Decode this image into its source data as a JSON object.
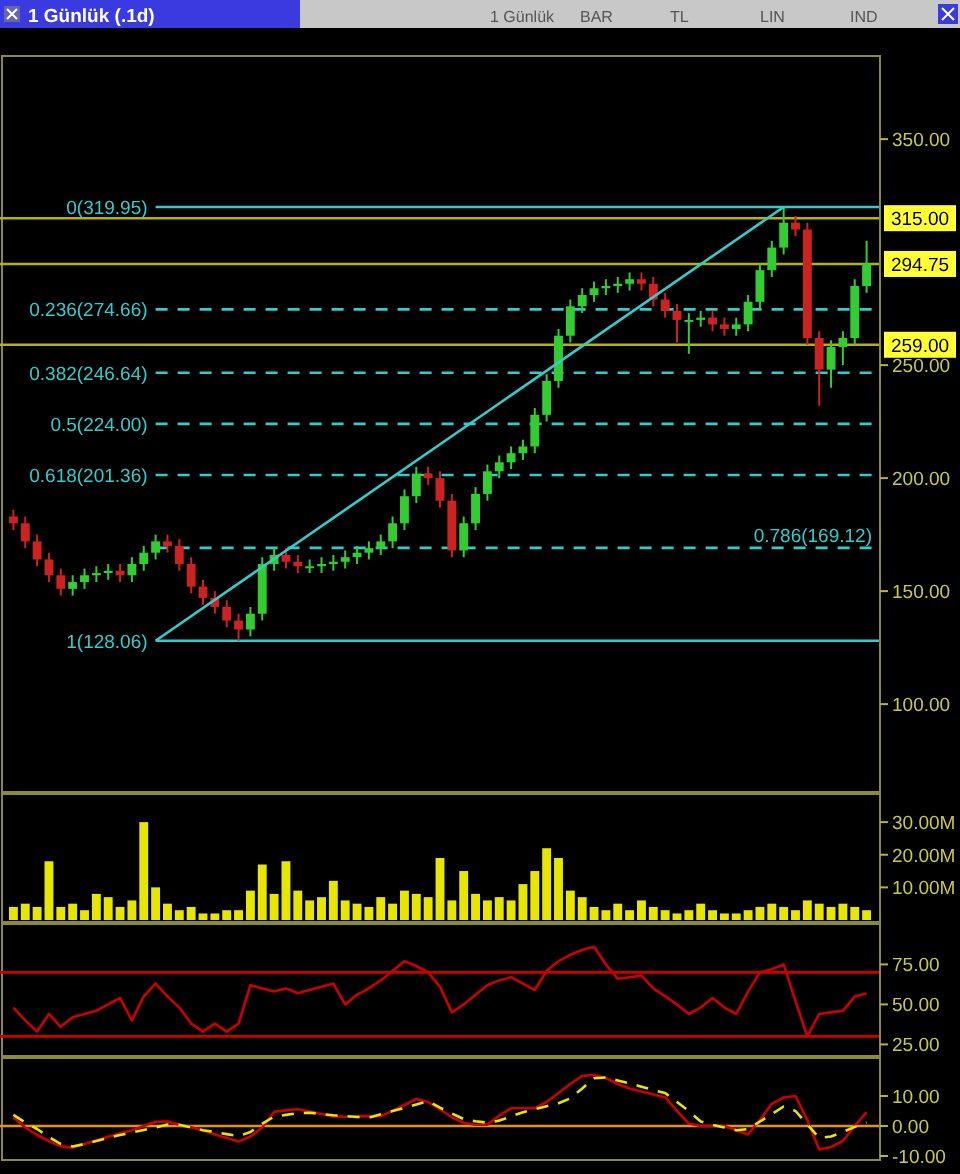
{
  "chart_data": [
    {
      "type": "candlestick",
      "title": "1 Günlük (.1d)",
      "annotations": [
        "1 Günlük",
        "BAR",
        "TL",
        "LIN",
        "IND"
      ],
      "tick_labels": "y",
      "grid": false,
      "categories": [
        null,
        null,
        null,
        null,
        null,
        null,
        null,
        null,
        null,
        null,
        null,
        null,
        null,
        null,
        null,
        null,
        null,
        null,
        null,
        null,
        null,
        null,
        null,
        null,
        null,
        null,
        null,
        null,
        null,
        null,
        null,
        null,
        null,
        null,
        null,
        null,
        null,
        null,
        null,
        null,
        null,
        null,
        null,
        null,
        null,
        null,
        null,
        null,
        null,
        null,
        null,
        null,
        null,
        null,
        null,
        null,
        null,
        null,
        null,
        null,
        null,
        null,
        null,
        null,
        null,
        null,
        null,
        null,
        null,
        null,
        null,
        null,
        null
      ],
      "ohlc": [
        [
          183,
          186,
          177,
          180
        ],
        [
          180,
          183,
          169,
          172
        ],
        [
          172,
          175,
          161,
          164
        ],
        [
          164,
          167,
          154,
          157
        ],
        [
          157,
          160,
          148,
          151
        ],
        [
          151,
          157,
          148,
          154
        ],
        [
          154,
          160,
          151,
          157
        ],
        [
          157,
          161,
          154,
          158
        ],
        [
          158,
          162,
          155,
          159
        ],
        [
          159,
          162,
          154,
          157
        ],
        [
          157,
          165,
          154,
          162
        ],
        [
          162,
          170,
          159,
          167
        ],
        [
          167,
          175,
          164,
          172
        ],
        [
          172,
          175,
          167,
          170
        ],
        [
          170,
          173,
          159,
          162
        ],
        [
          162,
          165,
          149,
          152
        ],
        [
          152,
          155,
          144,
          147
        ],
        [
          147,
          150,
          140,
          143
        ],
        [
          143,
          146,
          134,
          137
        ],
        [
          137,
          140,
          128.06,
          133
        ],
        [
          133,
          143,
          130,
          140
        ],
        [
          140,
          165,
          137,
          162
        ],
        [
          162,
          169,
          159,
          166
        ],
        [
          166,
          169,
          160,
          163
        ],
        [
          163,
          166,
          158,
          161
        ],
        [
          161,
          164,
          158,
          161
        ],
        [
          161,
          165,
          158,
          162
        ],
        [
          162,
          166,
          159,
          163
        ],
        [
          163,
          168,
          160,
          165
        ],
        [
          165,
          170,
          162,
          167
        ],
        [
          167,
          172,
          164,
          169
        ],
        [
          169,
          175,
          166,
          172
        ],
        [
          172,
          183,
          169,
          180
        ],
        [
          180,
          195,
          177,
          192
        ],
        [
          192,
          205,
          189,
          202
        ],
        [
          202,
          205,
          197,
          200
        ],
        [
          200,
          203,
          187,
          190
        ],
        [
          190,
          193,
          165,
          168
        ],
        [
          168,
          183,
          165,
          180
        ],
        [
          180,
          196,
          177,
          193
        ],
        [
          193,
          206,
          190,
          203
        ],
        [
          203,
          210,
          200,
          207
        ],
        [
          207,
          214,
          204,
          211
        ],
        [
          211,
          217,
          208,
          214
        ],
        [
          214,
          231,
          211,
          228
        ],
        [
          228,
          246,
          225,
          243
        ],
        [
          243,
          266,
          240,
          263
        ],
        [
          263,
          279,
          260,
          276
        ],
        [
          276,
          284,
          273,
          281
        ],
        [
          281,
          287,
          278,
          284
        ],
        [
          284,
          288,
          281,
          285
        ],
        [
          285,
          289,
          282,
          286
        ],
        [
          286,
          291,
          283,
          288
        ],
        [
          288,
          291,
          283,
          286
        ],
        [
          286,
          289,
          276,
          279
        ],
        [
          279,
          282,
          271,
          274
        ],
        [
          274,
          277,
          260,
          270
        ],
        [
          270,
          273,
          255,
          270
        ],
        [
          270,
          274,
          267,
          271
        ],
        [
          271,
          274,
          265,
          268
        ],
        [
          268,
          271,
          263,
          266
        ],
        [
          266,
          271,
          263,
          268
        ],
        [
          268,
          281,
          265,
          278
        ],
        [
          278,
          295,
          275,
          292
        ],
        [
          292,
          305,
          289,
          302
        ],
        [
          302,
          319.95,
          299,
          313
        ],
        [
          313,
          316,
          307,
          310
        ],
        [
          310,
          313,
          259,
          262
        ],
        [
          262,
          265,
          232,
          248
        ],
        [
          248,
          261,
          240,
          258
        ],
        [
          258,
          265,
          250,
          262
        ],
        [
          262,
          288,
          259,
          285
        ],
        [
          285,
          305,
          282,
          295
        ]
      ],
      "series": [
        {
          "type": "line",
          "color": "#33cccc",
          "values": [
            null,
            null,
            null,
            null,
            null,
            null,
            null,
            null,
            null,
            null,
            null,
            null,
            128.06,
            null,
            null,
            null,
            null,
            null,
            null,
            null,
            null,
            null,
            null,
            null,
            null,
            null,
            null,
            null,
            null,
            null,
            null,
            null,
            null,
            null,
            null,
            null,
            null,
            null,
            null,
            null,
            null,
            null,
            null,
            null,
            null,
            null,
            null,
            null,
            null,
            null,
            null,
            null,
            null,
            null,
            null,
            null,
            null,
            null,
            null,
            null,
            null,
            null,
            null,
            null,
            null,
            319.95,
            null,
            null,
            null,
            null,
            null,
            null,
            null
          ]
        }
      ],
      "ylim": [
        62,
        385
      ],
      "yticks": [
        {
          "value": 100,
          "label": "100.00"
        },
        {
          "value": 150,
          "label": "150.00"
        },
        {
          "value": 200,
          "label": "200.00"
        },
        {
          "value": 250,
          "label": "250.00"
        },
        {
          "value": 350,
          "label": "350.00"
        }
      ],
      "ref_lines": [
        {
          "axis": "y",
          "value": 319.95,
          "label": "0(319.95)",
          "color": "#33cccc",
          "line_style": "solid"
        },
        {
          "axis": "y",
          "value": 274.66,
          "label": "0.236(274.66)",
          "color": "#33cccc",
          "line_style": "dashed"
        },
        {
          "axis": "y",
          "value": 246.64,
          "label": "0.382(246.64)",
          "color": "#33cccc",
          "line_style": "dashed"
        },
        {
          "axis": "y",
          "value": 224,
          "label": "0.5(224.00)",
          "color": "#33cccc",
          "line_style": "dashed"
        },
        {
          "axis": "y",
          "value": 201.36,
          "label": "0.618(201.36)",
          "color": "#33cccc",
          "line_style": "dashed"
        },
        {
          "axis": "y",
          "value": 169.12,
          "label": "0.786(169.12)",
          "color": "#33cccc",
          "line_style": "dashed"
        },
        {
          "axis": "y",
          "value": 128.06,
          "label": "1(128.06)",
          "color": "#33cccc",
          "line_style": "solid"
        },
        {
          "axis": "y",
          "value": 315,
          "label": "315.00",
          "color": "#b5b500",
          "line_style": "solid"
        },
        {
          "axis": "y",
          "value": 294.75,
          "label": "294.75",
          "color": "#b5b500",
          "line_style": "solid"
        },
        {
          "axis": "y",
          "value": 259,
          "label": "259.00",
          "color": "#b5b500",
          "line_style": "solid"
        }
      ]
    },
    {
      "type": "bar",
      "tick_labels": "y",
      "grid": false,
      "color": "#e6e600",
      "categories": [
        null,
        null,
        null,
        null,
        null,
        null,
        null,
        null,
        null,
        null,
        null,
        null,
        null,
        null,
        null,
        null,
        null,
        null,
        null,
        null,
        null,
        null,
        null,
        null,
        null,
        null,
        null,
        null,
        null,
        null,
        null,
        null,
        null,
        null,
        null,
        null,
        null,
        null,
        null,
        null,
        null,
        null,
        null,
        null,
        null,
        null,
        null,
        null,
        null,
        null,
        null,
        null,
        null,
        null,
        null,
        null,
        null,
        null,
        null,
        null,
        null,
        null,
        null,
        null,
        null,
        null,
        null,
        null,
        null,
        null,
        null,
        null,
        null
      ],
      "values": [
        4,
        5,
        4,
        18,
        4,
        5,
        3,
        8,
        7,
        4,
        6,
        30,
        10,
        5,
        3,
        4,
        2,
        2,
        3,
        3,
        9,
        17,
        8,
        18,
        9,
        6,
        7,
        12,
        6,
        5,
        4,
        7,
        5,
        9,
        8,
        7,
        19,
        6,
        15,
        8,
        6,
        7,
        6,
        11,
        15,
        22,
        19,
        9,
        7,
        4,
        3,
        5,
        3,
        6,
        4,
        3,
        2,
        3,
        5,
        3,
        2,
        2,
        3,
        4,
        5,
        4,
        3,
        6,
        5,
        4,
        5,
        4,
        3
      ],
      "ylim": [
        0,
        38
      ],
      "yticks": [
        {
          "value": 10,
          "label": "10.00M"
        },
        {
          "value": 20,
          "label": "20.00M"
        },
        {
          "value": 30,
          "label": "30.00M"
        }
      ]
    },
    {
      "type": "line",
      "tick_labels": "y",
      "grid": false,
      "color": "#cc0000",
      "categories": [
        null,
        null,
        null,
        null,
        null,
        null,
        null,
        null,
        null,
        null,
        null,
        null,
        null,
        null,
        null,
        null,
        null,
        null,
        null,
        null,
        null,
        null,
        null,
        null,
        null,
        null,
        null,
        null,
        null,
        null,
        null,
        null,
        null,
        null,
        null,
        null,
        null,
        null,
        null,
        null,
        null,
        null,
        null,
        null,
        null,
        null,
        null,
        null,
        null,
        null,
        null,
        null,
        null,
        null,
        null,
        null,
        null,
        null,
        null,
        null,
        null,
        null,
        null,
        null,
        null,
        null,
        null,
        null,
        null,
        null,
        null,
        null,
        null
      ],
      "values": [
        48,
        40,
        33,
        44,
        36,
        42,
        44,
        46,
        50,
        54,
        40,
        55,
        63,
        55,
        48,
        38,
        33,
        38,
        33,
        38,
        62,
        60,
        58,
        60,
        57,
        59,
        61,
        63,
        50,
        56,
        60,
        65,
        71,
        77,
        74,
        70,
        61,
        45,
        50,
        56,
        62,
        65,
        67,
        63,
        59,
        71,
        77,
        81,
        84,
        86,
        75,
        66,
        67,
        68,
        60,
        55,
        50,
        44,
        48,
        54,
        48,
        44,
        58,
        70,
        72,
        75,
        52,
        30,
        44,
        45,
        46,
        55,
        57
      ],
      "ylim": [
        19,
        99
      ],
      "yticks": [
        {
          "value": 25,
          "label": "25.00"
        },
        {
          "value": 50,
          "label": "50.00"
        },
        {
          "value": 75,
          "label": "75.00"
        }
      ],
      "ref_lines": [
        {
          "axis": "y",
          "value": 70,
          "color": "#cc0000"
        },
        {
          "axis": "y",
          "value": 30,
          "color": "#cc0000"
        }
      ]
    },
    {
      "type": "line",
      "tick_labels": "y",
      "grid": false,
      "categories": [
        null,
        null,
        null,
        null,
        null,
        null,
        null,
        null,
        null,
        null,
        null,
        null,
        null,
        null,
        null,
        null,
        null,
        null,
        null,
        null,
        null,
        null,
        null,
        null,
        null,
        null,
        null,
        null,
        null,
        null,
        null,
        null,
        null,
        null,
        null,
        null,
        null,
        null,
        null,
        null,
        null,
        null,
        null,
        null,
        null,
        null,
        null,
        null,
        null,
        null,
        null,
        null,
        null,
        null,
        null,
        null,
        null,
        null,
        null,
        null,
        null,
        null,
        null,
        null,
        null,
        null,
        null,
        null,
        null,
        null,
        null,
        null,
        null
      ],
      "series": [
        {
          "color": "#cc0000",
          "line_style": "solid",
          "values": [
            2.8,
            -0.5,
            -3,
            -5,
            -6.8,
            -7.2,
            -6,
            -4.8,
            -3.6,
            -2.4,
            -1.4,
            0,
            1.4,
            1.5,
            0.4,
            -0.4,
            -1.5,
            -2.8,
            -4,
            -5.2,
            -3.5,
            -0.5,
            4.7,
            5.2,
            5.6,
            4.8,
            4,
            3.2,
            3.1,
            3.2,
            3.3,
            3.3,
            5,
            7,
            9,
            8,
            5.5,
            3,
            1,
            0.4,
            0.4,
            3.5,
            5.9,
            5.9,
            5.9,
            8,
            11,
            14,
            16.7,
            17,
            16,
            14,
            12.5,
            11.5,
            10.5,
            9.6,
            5,
            0.8,
            0,
            0,
            0,
            -1.4,
            -2.8,
            2,
            7.4,
            9.5,
            10,
            2,
            -7.8,
            -7,
            -5,
            0,
            4.6
          ]
        },
        {
          "color": "#e6e600",
          "line_style": "dashed",
          "values": [
            3.7,
            1.2,
            -1,
            -3.7,
            -6,
            -6.8,
            -6,
            -5,
            -4,
            -3,
            -2.2,
            -1.3,
            -0.5,
            0.5,
            0.4,
            -0.5,
            -1.4,
            -2,
            -2.7,
            -3.4,
            -2,
            0.8,
            3.1,
            3.7,
            4.3,
            4.4,
            4,
            3.6,
            3.3,
            3,
            2.8,
            3.9,
            5,
            6,
            7.2,
            8.3,
            6.1,
            4.2,
            2.3,
            1.6,
            1.1,
            1.8,
            3.2,
            4.6,
            5.6,
            6.6,
            7.6,
            9.2,
            12.5,
            15.9,
            16.2,
            15.2,
            14.2,
            13.1,
            12,
            11,
            8,
            5,
            1.5,
            0.4,
            -0.5,
            -1.4,
            -1,
            1.5,
            4,
            6.5,
            5,
            0.5,
            -4,
            -3.5,
            -2,
            -0.3,
            1.2
          ]
        }
      ],
      "ylim": [
        -10,
        22
      ],
      "yticks": [
        {
          "value": -10,
          "label": "-10.00"
        },
        {
          "value": 0,
          "label": "0.00"
        },
        {
          "value": 10,
          "label": "10.00"
        }
      ],
      "ref_lines": [
        {
          "axis": "y",
          "value": 0,
          "color": "#e69500"
        }
      ]
    }
  ]
}
